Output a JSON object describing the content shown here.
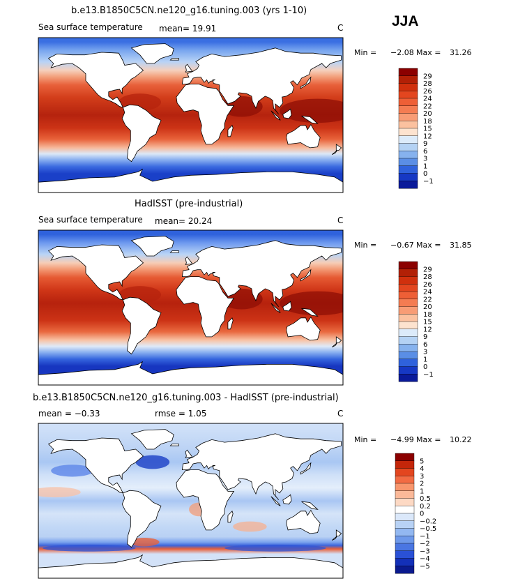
{
  "season": "JJA",
  "panels": [
    {
      "title": "b.e13.B1850C5CN.ne120_g16.tuning.003 (yrs 1-10)",
      "variable": "Sea surface temperature",
      "stat_left": "mean=   19.91",
      "stat_right": "",
      "units": "C",
      "min_label": "Min =",
      "min_value": "−2.08",
      "max_label": "Max =",
      "max_value": "31.26",
      "kind": "model"
    },
    {
      "title": "HadISST (pre-industrial)",
      "variable": "Sea surface temperature",
      "stat_left": "mean=   20.24",
      "stat_right": "",
      "units": "C",
      "min_label": "Min =",
      "min_value": "−0.67",
      "max_label": "Max =",
      "max_value": "31.85",
      "kind": "obs"
    },
    {
      "title": "b.e13.B1850C5CN.ne120_g16.tuning.003 - HadISST (pre-industrial)",
      "variable": "",
      "stat_left": "mean =   −0.33",
      "stat_right": "rmse =    1.05",
      "units": "C",
      "min_label": "Min =",
      "min_value": "−4.99",
      "max_label": "Max =",
      "max_value": "10.22",
      "kind": "diff"
    }
  ],
  "chart_data": [
    {
      "type": "heatmap",
      "title": "b.e13.B1850C5CN.ne120_g16.tuning.003 (yrs 1-10)",
      "subtitle": "Sea surface temperature",
      "mean": 19.91,
      "min": -2.08,
      "max": 31.26,
      "units": "C",
      "colorbar_levels": [
        "29",
        "28",
        "26",
        "24",
        "22",
        "20",
        "18",
        "15",
        "12",
        "9",
        "6",
        "3",
        "1",
        "0",
        "−1"
      ],
      "colorbar_colors": [
        "#8b0000",
        "#b22006",
        "#d0300d",
        "#e3461f",
        "#ee5f36",
        "#f47c52",
        "#f89c75",
        "#fbc19f",
        "#fde3cf",
        "#dcebfa",
        "#b4d2f4",
        "#86b2ee",
        "#5a8ee5",
        "#2f62dc",
        "#1638c4",
        "#0a1a9a"
      ],
      "map_gradient": [
        [
          85,
          "#3a6fe2"
        ],
        [
          75,
          "#79a6ef"
        ],
        [
          62,
          "#b8d3f6"
        ],
        [
          52,
          "#f5d0bd"
        ],
        [
          45,
          "#f3a37f"
        ],
        [
          35,
          "#e8603a"
        ],
        [
          20,
          "#d23d1a"
        ],
        [
          0,
          "#b5230e"
        ],
        [
          -15,
          "#cc3316"
        ],
        [
          -28,
          "#e8623a"
        ],
        [
          -38,
          "#f6b99c"
        ],
        [
          -45,
          "#dce8f7"
        ],
        [
          -52,
          "#88aef0"
        ],
        [
          -60,
          "#3b6ae0"
        ],
        [
          -68,
          "#1a40c8"
        ],
        [
          -80,
          "#1a40c8"
        ]
      ]
    },
    {
      "type": "heatmap",
      "title": "HadISST (pre-industrial)",
      "subtitle": "Sea surface temperature",
      "mean": 20.24,
      "min": -0.67,
      "max": 31.85,
      "units": "C",
      "colorbar_levels": [
        "29",
        "28",
        "26",
        "24",
        "22",
        "20",
        "18",
        "15",
        "12",
        "9",
        "6",
        "3",
        "1",
        "0",
        "−1"
      ],
      "colorbar_colors": [
        "#8b0000",
        "#b22006",
        "#d0300d",
        "#e3461f",
        "#ee5f36",
        "#f47c52",
        "#f89c75",
        "#fbc19f",
        "#fde3cf",
        "#dcebfa",
        "#b4d2f4",
        "#86b2ee",
        "#5a8ee5",
        "#2f62dc",
        "#1638c4",
        "#0a1a9a"
      ],
      "map_gradient": [
        [
          85,
          "#2f62dc"
        ],
        [
          75,
          "#6f9aef"
        ],
        [
          62,
          "#b9d4f6"
        ],
        [
          52,
          "#f6cdb6"
        ],
        [
          45,
          "#f39d78"
        ],
        [
          35,
          "#e65a33"
        ],
        [
          20,
          "#cf3517"
        ],
        [
          5,
          "#b6220d"
        ],
        [
          -15,
          "#cc3316"
        ],
        [
          -28,
          "#e9693f"
        ],
        [
          -38,
          "#f8c3a6"
        ],
        [
          -45,
          "#dfeaf8"
        ],
        [
          -52,
          "#8ab0f0"
        ],
        [
          -60,
          "#3565de"
        ],
        [
          -68,
          "#1736c0"
        ],
        [
          -80,
          "#1736c0"
        ]
      ]
    },
    {
      "type": "heatmap",
      "title": "b.e13.B1850C5CN.ne120_g16.tuning.003 - HadISST (pre-industrial)",
      "mean": -0.33,
      "rmse": 1.05,
      "min": -4.99,
      "max": 10.22,
      "units": "C",
      "colorbar_levels": [
        "5",
        "4",
        "3",
        "2",
        "1",
        "0.5",
        "0.2",
        "0",
        "−0.2",
        "−0.5",
        "−1",
        "−2",
        "−3",
        "−4",
        "−5"
      ],
      "colorbar_colors": [
        "#8b0000",
        "#c4260a",
        "#e3461f",
        "#f26b43",
        "#f8966d",
        "#fbb999",
        "#fdd9c4",
        "#ffffff",
        "#dbe8fa",
        "#b8d2f5",
        "#93b8f1",
        "#6e99ea",
        "#4a76e2",
        "#2a51d6",
        "#1330b8",
        "#0a1a8e"
      ],
      "map_gradient": [
        [
          85,
          "#cfe0f8"
        ],
        [
          60,
          "#bcd3f5"
        ],
        [
          45,
          "#a9c7f3"
        ],
        [
          30,
          "#cfe0f8"
        ],
        [
          15,
          "#e4eefb"
        ],
        [
          0,
          "#a9c6f3"
        ],
        [
          -15,
          "#d5e4f8"
        ],
        [
          -30,
          "#c2d8f6"
        ],
        [
          -42,
          "#b9d1f4"
        ],
        [
          -48,
          "#7ca4ee"
        ],
        [
          -52,
          "#3b64dc"
        ],
        [
          -56,
          "#e8603a"
        ],
        [
          -62,
          "#d3e2f8"
        ],
        [
          -80,
          "#d3e2f8"
        ]
      ]
    }
  ]
}
